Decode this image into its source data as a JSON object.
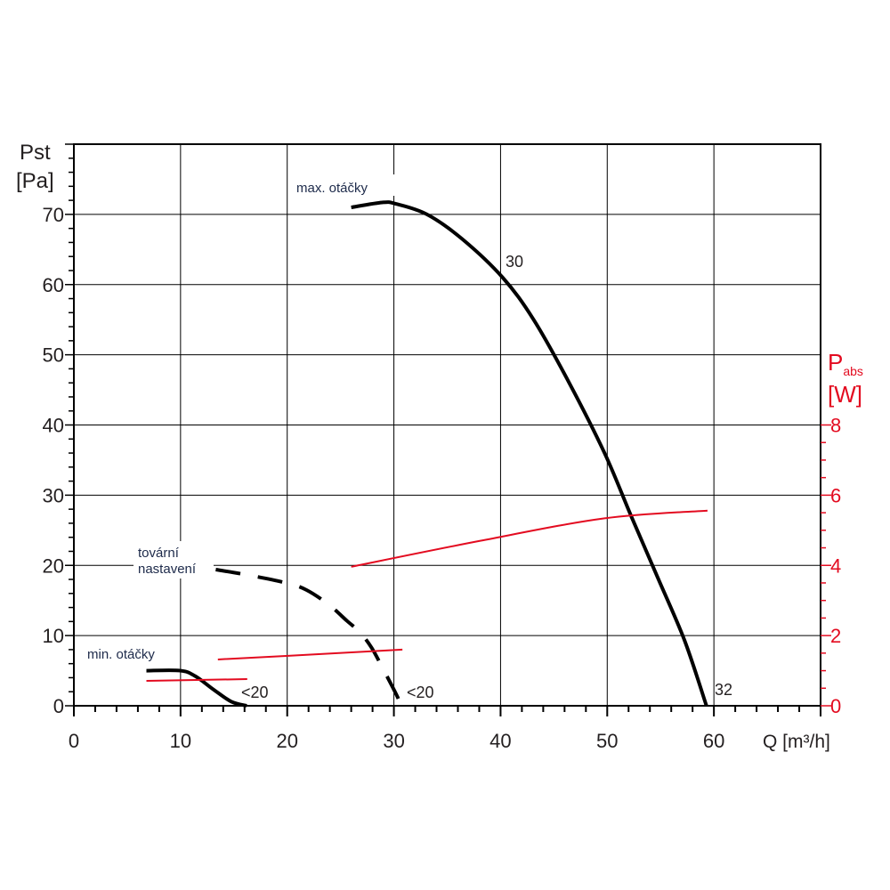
{
  "chart_data": {
    "type": "line",
    "title": "",
    "xlabel": "Q [m³/h]",
    "ylabel": "Pst [Pa]",
    "ylabel_line1": "Pst",
    "ylabel_line2": "[Pa]",
    "y2label_main": "P",
    "y2label_sub": "abs",
    "y2label_unit": "[W]",
    "xlim": [
      0,
      70
    ],
    "ylim": [
      0,
      80
    ],
    "y2lim": [
      0,
      16
    ],
    "grid": true,
    "x_ticks": [
      "0",
      "10",
      "20",
      "30",
      "40",
      "50",
      "60"
    ],
    "y_ticks": [
      "0",
      "10",
      "20",
      "30",
      "40",
      "50",
      "60",
      "70"
    ],
    "y2_ticks": [
      "0",
      "2",
      "4",
      "6",
      "8"
    ],
    "colors": {
      "pressure": "#000000",
      "power": "#e30b20",
      "grid": "#000000"
    },
    "series": [
      {
        "name": "max. otáčky",
        "axis": "left",
        "style": "solid",
        "x": [
          26.0,
          28.9,
          30.2,
          33.1,
          36.4,
          40.2,
          43.1,
          46.4,
          49.75,
          52.25,
          54.75,
          57.25,
          59.3
        ],
        "y": [
          71.0,
          71.7,
          71.5,
          70.0,
          66.5,
          61.0,
          55.0,
          46.1,
          36.0,
          27.0,
          18.2,
          9.3,
          0
        ]
      },
      {
        "name": "tovární nastavení",
        "axis": "left",
        "style": "dashed",
        "x": [
          13.3,
          16.4,
          19.9,
          21.8,
          23.9,
          25.6,
          26.8,
          27.9,
          28.9,
          30.2,
          30.7
        ],
        "y": [
          19.4,
          18.6,
          17.5,
          16.5,
          14.4,
          12.1,
          10.5,
          8.3,
          5.5,
          1.7,
          0
        ]
      },
      {
        "name": "min. otáčky",
        "axis": "left",
        "style": "solid",
        "x": [
          6.8,
          10.0,
          11.4,
          13.1,
          14.75,
          16.2
        ],
        "y": [
          5.0,
          5.0,
          4.2,
          2.3,
          0.6,
          0
        ]
      },
      {
        "name": "Pabs max. otáčky",
        "axis": "right",
        "style": "solid",
        "x": [
          26.0,
          38.1,
          49.75,
          59.4
        ],
        "y": [
          3.96,
          4.7,
          5.34,
          5.56
        ]
      },
      {
        "name": "Pabs tovární nastavení",
        "axis": "right",
        "style": "solid",
        "x": [
          13.5,
          19.9,
          30.8
        ],
        "y": [
          1.32,
          1.42,
          1.6
        ]
      },
      {
        "name": "Pabs min. otáčky",
        "axis": "right",
        "style": "solid",
        "x": [
          6.8,
          16.25
        ],
        "y": [
          0.71,
          0.76
        ]
      }
    ],
    "annotations": {
      "max_label": "max. otáčky",
      "factory_line1": "tovární",
      "factory_line2": "nastavení",
      "min_label": "min. otáčky",
      "max_mid": "30",
      "max_end": "32",
      "factory_end": "<20",
      "min_end": "<20"
    }
  }
}
